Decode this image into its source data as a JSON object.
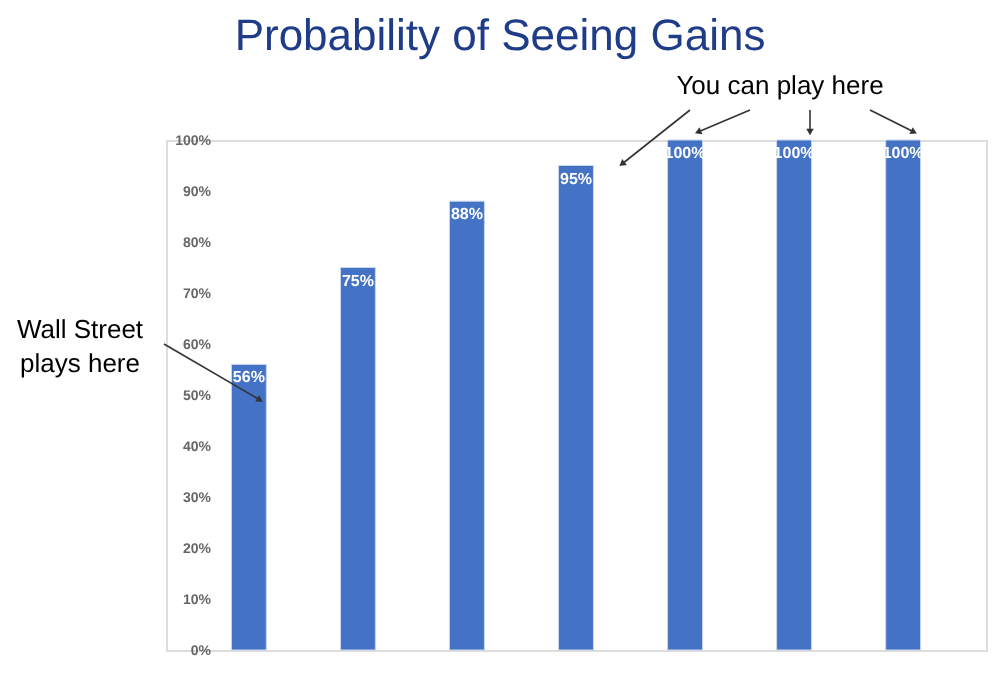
{
  "chart_data": {
    "type": "bar",
    "title": "Probability of Seeing Gains",
    "categories": [
      null,
      null,
      null,
      null,
      null,
      null,
      null
    ],
    "values": [
      56,
      75,
      88,
      95,
      100,
      100,
      100
    ],
    "value_labels": [
      "56%",
      "75%",
      "88%",
      "95%",
      "100%",
      "100%",
      "100%"
    ],
    "color": "#4472c4",
    "ylim": [
      0,
      100
    ],
    "yticks": [
      {
        "value": 0,
        "label": "0%"
      },
      {
        "value": 10,
        "label": "10%"
      },
      {
        "value": 20,
        "label": "20%"
      },
      {
        "value": 30,
        "label": "30%"
      },
      {
        "value": 40,
        "label": "40%"
      },
      {
        "value": 50,
        "label": "50%"
      },
      {
        "value": 60,
        "label": "60%"
      },
      {
        "value": 70,
        "label": "70%"
      },
      {
        "value": 80,
        "label": "80%"
      },
      {
        "value": 90,
        "label": "90%"
      },
      {
        "value": 100,
        "label": "100%"
      }
    ],
    "tick_labels": "y",
    "grid": false,
    "annotations": [
      "Wall Street plays here",
      "You can play here"
    ]
  }
}
